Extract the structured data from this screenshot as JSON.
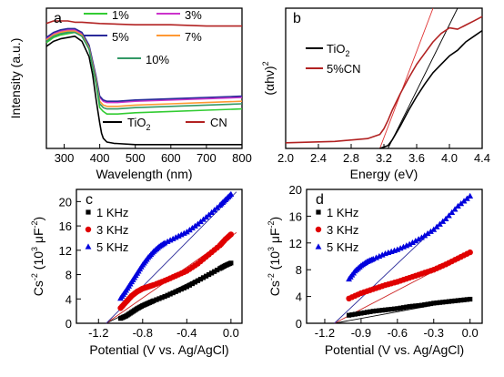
{
  "chart_data": [
    {
      "panel": "a",
      "type": "line",
      "xlabel": "Wavelength (nm)",
      "ylabel": "Intensity (a.u.)",
      "xlim": [
        250,
        800
      ],
      "ylim": [
        0,
        1.1
      ],
      "xticks": [
        "300",
        "400",
        "500",
        "600",
        "700",
        "800"
      ],
      "xtick_values": [
        300,
        400,
        500,
        600,
        700,
        800
      ],
      "legend": "top-right inside, two groups",
      "series": [
        {
          "name": "TiO2",
          "label_main": "TiO",
          "label_sub": "2",
          "color": "#000000",
          "x": [
            250,
            270,
            290,
            310,
            330,
            350,
            370,
            380,
            390,
            400,
            405,
            410,
            420,
            440,
            500,
            600,
            700,
            800
          ],
          "y": [
            0.8,
            0.84,
            0.86,
            0.87,
            0.88,
            0.84,
            0.72,
            0.58,
            0.38,
            0.2,
            0.12,
            0.08,
            0.05,
            0.04,
            0.03,
            0.03,
            0.03,
            0.03
          ]
        },
        {
          "name": "CN",
          "color": "#b22222",
          "x": [
            250,
            270,
            290,
            310,
            330,
            350,
            400,
            500,
            600,
            700,
            800
          ],
          "y": [
            0.98,
            1.0,
            1.0,
            1.0,
            0.99,
            0.99,
            0.98,
            0.97,
            0.97,
            0.96,
            0.96
          ]
        },
        {
          "name": "1%",
          "color": "#33cc33",
          "x": [
            250,
            270,
            290,
            310,
            330,
            350,
            370,
            390,
            400,
            410,
            420,
            430,
            450,
            500,
            600,
            700,
            800
          ],
          "y": [
            0.83,
            0.87,
            0.89,
            0.9,
            0.91,
            0.88,
            0.78,
            0.5,
            0.32,
            0.29,
            0.27,
            0.27,
            0.27,
            0.28,
            0.29,
            0.3,
            0.31
          ]
        },
        {
          "name": "3%",
          "color": "#cc33cc",
          "x": [
            250,
            270,
            290,
            310,
            330,
            350,
            370,
            390,
            400,
            410,
            420,
            430,
            450,
            500,
            600,
            700,
            800
          ],
          "y": [
            0.86,
            0.9,
            0.92,
            0.93,
            0.93,
            0.9,
            0.8,
            0.55,
            0.4,
            0.37,
            0.36,
            0.36,
            0.36,
            0.37,
            0.38,
            0.39,
            0.4
          ]
        },
        {
          "name": "5%",
          "color": "#2a2a9a",
          "x": [
            250,
            270,
            290,
            310,
            330,
            350,
            370,
            390,
            400,
            410,
            420,
            430,
            450,
            500,
            600,
            700,
            800
          ],
          "y": [
            0.87,
            0.91,
            0.93,
            0.94,
            0.94,
            0.91,
            0.81,
            0.56,
            0.41,
            0.38,
            0.37,
            0.37,
            0.37,
            0.38,
            0.39,
            0.4,
            0.41
          ]
        },
        {
          "name": "7%",
          "color": "#ff9933",
          "x": [
            250,
            270,
            290,
            310,
            330,
            350,
            370,
            390,
            400,
            410,
            420,
            430,
            450,
            500,
            600,
            700,
            800
          ],
          "y": [
            0.85,
            0.89,
            0.91,
            0.92,
            0.92,
            0.89,
            0.79,
            0.53,
            0.37,
            0.34,
            0.33,
            0.33,
            0.33,
            0.34,
            0.35,
            0.36,
            0.37
          ]
        },
        {
          "name": "10%",
          "color": "#339966",
          "x": [
            250,
            270,
            290,
            310,
            330,
            350,
            370,
            390,
            400,
            410,
            420,
            430,
            450,
            500,
            600,
            700,
            800
          ],
          "y": [
            0.84,
            0.88,
            0.9,
            0.91,
            0.91,
            0.88,
            0.78,
            0.51,
            0.35,
            0.32,
            0.31,
            0.31,
            0.31,
            0.32,
            0.33,
            0.34,
            0.35
          ]
        }
      ]
    },
    {
      "panel": "b",
      "type": "line",
      "xlabel": "Energy (eV)",
      "ylabel": "(αhν)²",
      "ylabel_main": "(αhν)",
      "ylabel_sup": "2",
      "xlim": [
        2.0,
        4.4
      ],
      "ylim": [
        0,
        1.0
      ],
      "xticks": [
        "2.0",
        "2.4",
        "2.8",
        "3.2",
        "3.6",
        "4.0",
        "4.4"
      ],
      "xtick_values": [
        2.0,
        2.4,
        2.8,
        3.2,
        3.6,
        4.0,
        4.4
      ],
      "legend": "center-left",
      "series": [
        {
          "name": "TiO2",
          "label_main": "TiO",
          "label_sub": "2",
          "color": "#000000",
          "x": [
            3.15,
            3.25,
            3.3,
            3.4,
            3.5,
            3.6,
            3.7,
            3.8,
            3.9,
            4.0,
            4.1,
            4.2,
            4.3,
            4.4
          ],
          "y": [
            0.0,
            0.02,
            0.06,
            0.16,
            0.27,
            0.37,
            0.46,
            0.54,
            0.6,
            0.66,
            0.7,
            0.76,
            0.8,
            0.84
          ]
        },
        {
          "name": "5%CN",
          "color": "#b22222",
          "x": [
            2.0,
            2.6,
            3.0,
            3.15,
            3.2,
            3.25,
            3.3,
            3.4,
            3.5,
            3.6,
            3.7,
            3.8,
            3.9,
            4.0,
            4.1,
            4.2,
            4.3,
            4.4
          ],
          "y": [
            0.04,
            0.05,
            0.07,
            0.1,
            0.14,
            0.2,
            0.27,
            0.39,
            0.5,
            0.6,
            0.68,
            0.76,
            0.82,
            0.86,
            0.85,
            0.88,
            0.91,
            0.94
          ]
        }
      ],
      "fit_lines": [
        {
          "color": "#000000",
          "x": [
            3.25,
            4.1
          ],
          "y": [
            0.0,
            1.0
          ]
        },
        {
          "color": "#e03030",
          "x": [
            3.15,
            3.8
          ],
          "y": [
            0.0,
            1.0
          ]
        }
      ]
    },
    {
      "panel": "c",
      "type": "scatter",
      "xlabel": "Potential (V vs. Ag/AgCl)",
      "ylabel": "Cs⁻² (10³ μF⁻²)",
      "ylabel_a": "Cs",
      "ylabel_b": "-2",
      "ylabel_c": " (10",
      "ylabel_d": "3",
      "ylabel_e": " μF",
      "ylabel_f": "-2",
      "ylabel_g": ")",
      "xlim": [
        -1.4,
        0.1
      ],
      "ylim": [
        0,
        22
      ],
      "xticks": [
        "-1.2",
        "-0.8",
        "-0.4",
        "0.0"
      ],
      "xtick_values": [
        -1.2,
        -0.8,
        -0.4,
        0.0
      ],
      "yticks": [
        "0",
        "4",
        "8",
        "12",
        "16",
        "20"
      ],
      "ytick_values": [
        0,
        4,
        8,
        12,
        16,
        20
      ],
      "legend": "top-left",
      "series": [
        {
          "name": "1 KHz",
          "marker": "square",
          "color": "#000000",
          "x": [
            -1.0,
            -0.95,
            -0.9,
            -0.85,
            -0.8,
            -0.75,
            -0.7,
            -0.6,
            -0.5,
            -0.4,
            -0.3,
            -0.2,
            -0.1,
            -0.05,
            0.0
          ],
          "y": [
            0.8,
            1.2,
            1.8,
            2.4,
            2.9,
            3.3,
            3.7,
            4.4,
            5.2,
            6.0,
            7.0,
            8.0,
            9.0,
            9.5,
            9.9
          ]
        },
        {
          "name": "3 KHz",
          "marker": "circle",
          "color": "#e00000",
          "x": [
            -1.0,
            -0.95,
            -0.9,
            -0.85,
            -0.8,
            -0.75,
            -0.7,
            -0.6,
            -0.5,
            -0.4,
            -0.3,
            -0.2,
            -0.1,
            -0.05,
            0.0
          ],
          "y": [
            2.5,
            3.5,
            4.5,
            5.2,
            5.7,
            6.0,
            6.3,
            7.0,
            7.8,
            8.6,
            9.8,
            11.3,
            12.8,
            13.8,
            14.6
          ]
        },
        {
          "name": "5 KHz",
          "marker": "triangle",
          "color": "#0000dd",
          "x": [
            -1.0,
            -0.95,
            -0.9,
            -0.85,
            -0.8,
            -0.75,
            -0.7,
            -0.65,
            -0.6,
            -0.5,
            -0.4,
            -0.3,
            -0.2,
            -0.1,
            -0.05,
            0.0
          ],
          "y": [
            4.1,
            5.4,
            6.8,
            8.2,
            9.6,
            10.8,
            11.8,
            12.6,
            13.2,
            14.1,
            15.0,
            16.3,
            17.8,
            19.4,
            20.3,
            21.2
          ]
        }
      ],
      "fit_lines": [
        {
          "color": "#000000",
          "x": [
            -1.13,
            0.0
          ],
          "y": [
            0.0,
            10.0
          ]
        },
        {
          "color": "#cc2222",
          "x": [
            -1.13,
            0.05
          ],
          "y": [
            0.0,
            14.9
          ]
        },
        {
          "color": "#2a2a9a",
          "x": [
            -1.13,
            0.05
          ],
          "y": [
            0.0,
            21.6
          ]
        }
      ]
    },
    {
      "panel": "d",
      "type": "scatter",
      "xlabel": "Potential (V vs. Ag/AgCl)",
      "ylabel": "Cs⁻² (10³ μF⁻²)",
      "ylabel_a": "Cs",
      "ylabel_b": "-2",
      "ylabel_c": " (10",
      "ylabel_d": "3",
      "ylabel_e": " μF",
      "ylabel_f": "-2",
      "ylabel_g": ")",
      "xlim": [
        -1.35,
        0.1
      ],
      "ylim": [
        0,
        20
      ],
      "xticks": [
        "-1.2",
        "-0.9",
        "-0.6",
        "-0.3",
        "0.0"
      ],
      "xtick_values": [
        -1.2,
        -0.9,
        -0.6,
        -0.3,
        0.0
      ],
      "yticks": [
        "0",
        "4",
        "8",
        "12",
        "16",
        "20"
      ],
      "ytick_values": [
        0,
        4,
        8,
        12,
        16,
        20
      ],
      "legend": "top-left",
      "series": [
        {
          "name": "1 KHz",
          "marker": "square",
          "color": "#000000",
          "x": [
            -1.0,
            -0.9,
            -0.8,
            -0.7,
            -0.6,
            -0.5,
            -0.4,
            -0.3,
            -0.2,
            -0.1,
            0.0
          ],
          "y": [
            1.2,
            1.5,
            1.8,
            2.0,
            2.2,
            2.5,
            2.7,
            3.0,
            3.2,
            3.4,
            3.6
          ]
        },
        {
          "name": "3 KHz",
          "marker": "circle",
          "color": "#e00000",
          "x": [
            -1.0,
            -0.9,
            -0.8,
            -0.7,
            -0.6,
            -0.5,
            -0.4,
            -0.3,
            -0.2,
            -0.1,
            0.0
          ],
          "y": [
            3.7,
            4.5,
            5.1,
            5.7,
            6.2,
            6.8,
            7.4,
            8.0,
            8.8,
            9.7,
            10.6
          ]
        },
        {
          "name": "5 KHz",
          "marker": "triangle",
          "color": "#0000dd",
          "x": [
            -1.0,
            -0.95,
            -0.9,
            -0.85,
            -0.8,
            -0.7,
            -0.6,
            -0.5,
            -0.4,
            -0.3,
            -0.2,
            -0.1,
            0.0
          ],
          "y": [
            6.6,
            7.8,
            8.6,
            9.2,
            9.6,
            10.4,
            11.0,
            11.8,
            12.8,
            14.0,
            15.6,
            17.5,
            19.0
          ]
        }
      ],
      "fit_lines": [
        {
          "color": "#000000",
          "x": [
            -1.12,
            0.0
          ],
          "y": [
            0.0,
            3.7
          ]
        },
        {
          "color": "#cc2222",
          "x": [
            -1.12,
            0.0
          ],
          "y": [
            0.0,
            10.6
          ]
        },
        {
          "color": "#2a2a9a",
          "x": [
            -1.12,
            0.0
          ],
          "y": [
            0.0,
            19.2
          ]
        }
      ]
    }
  ]
}
